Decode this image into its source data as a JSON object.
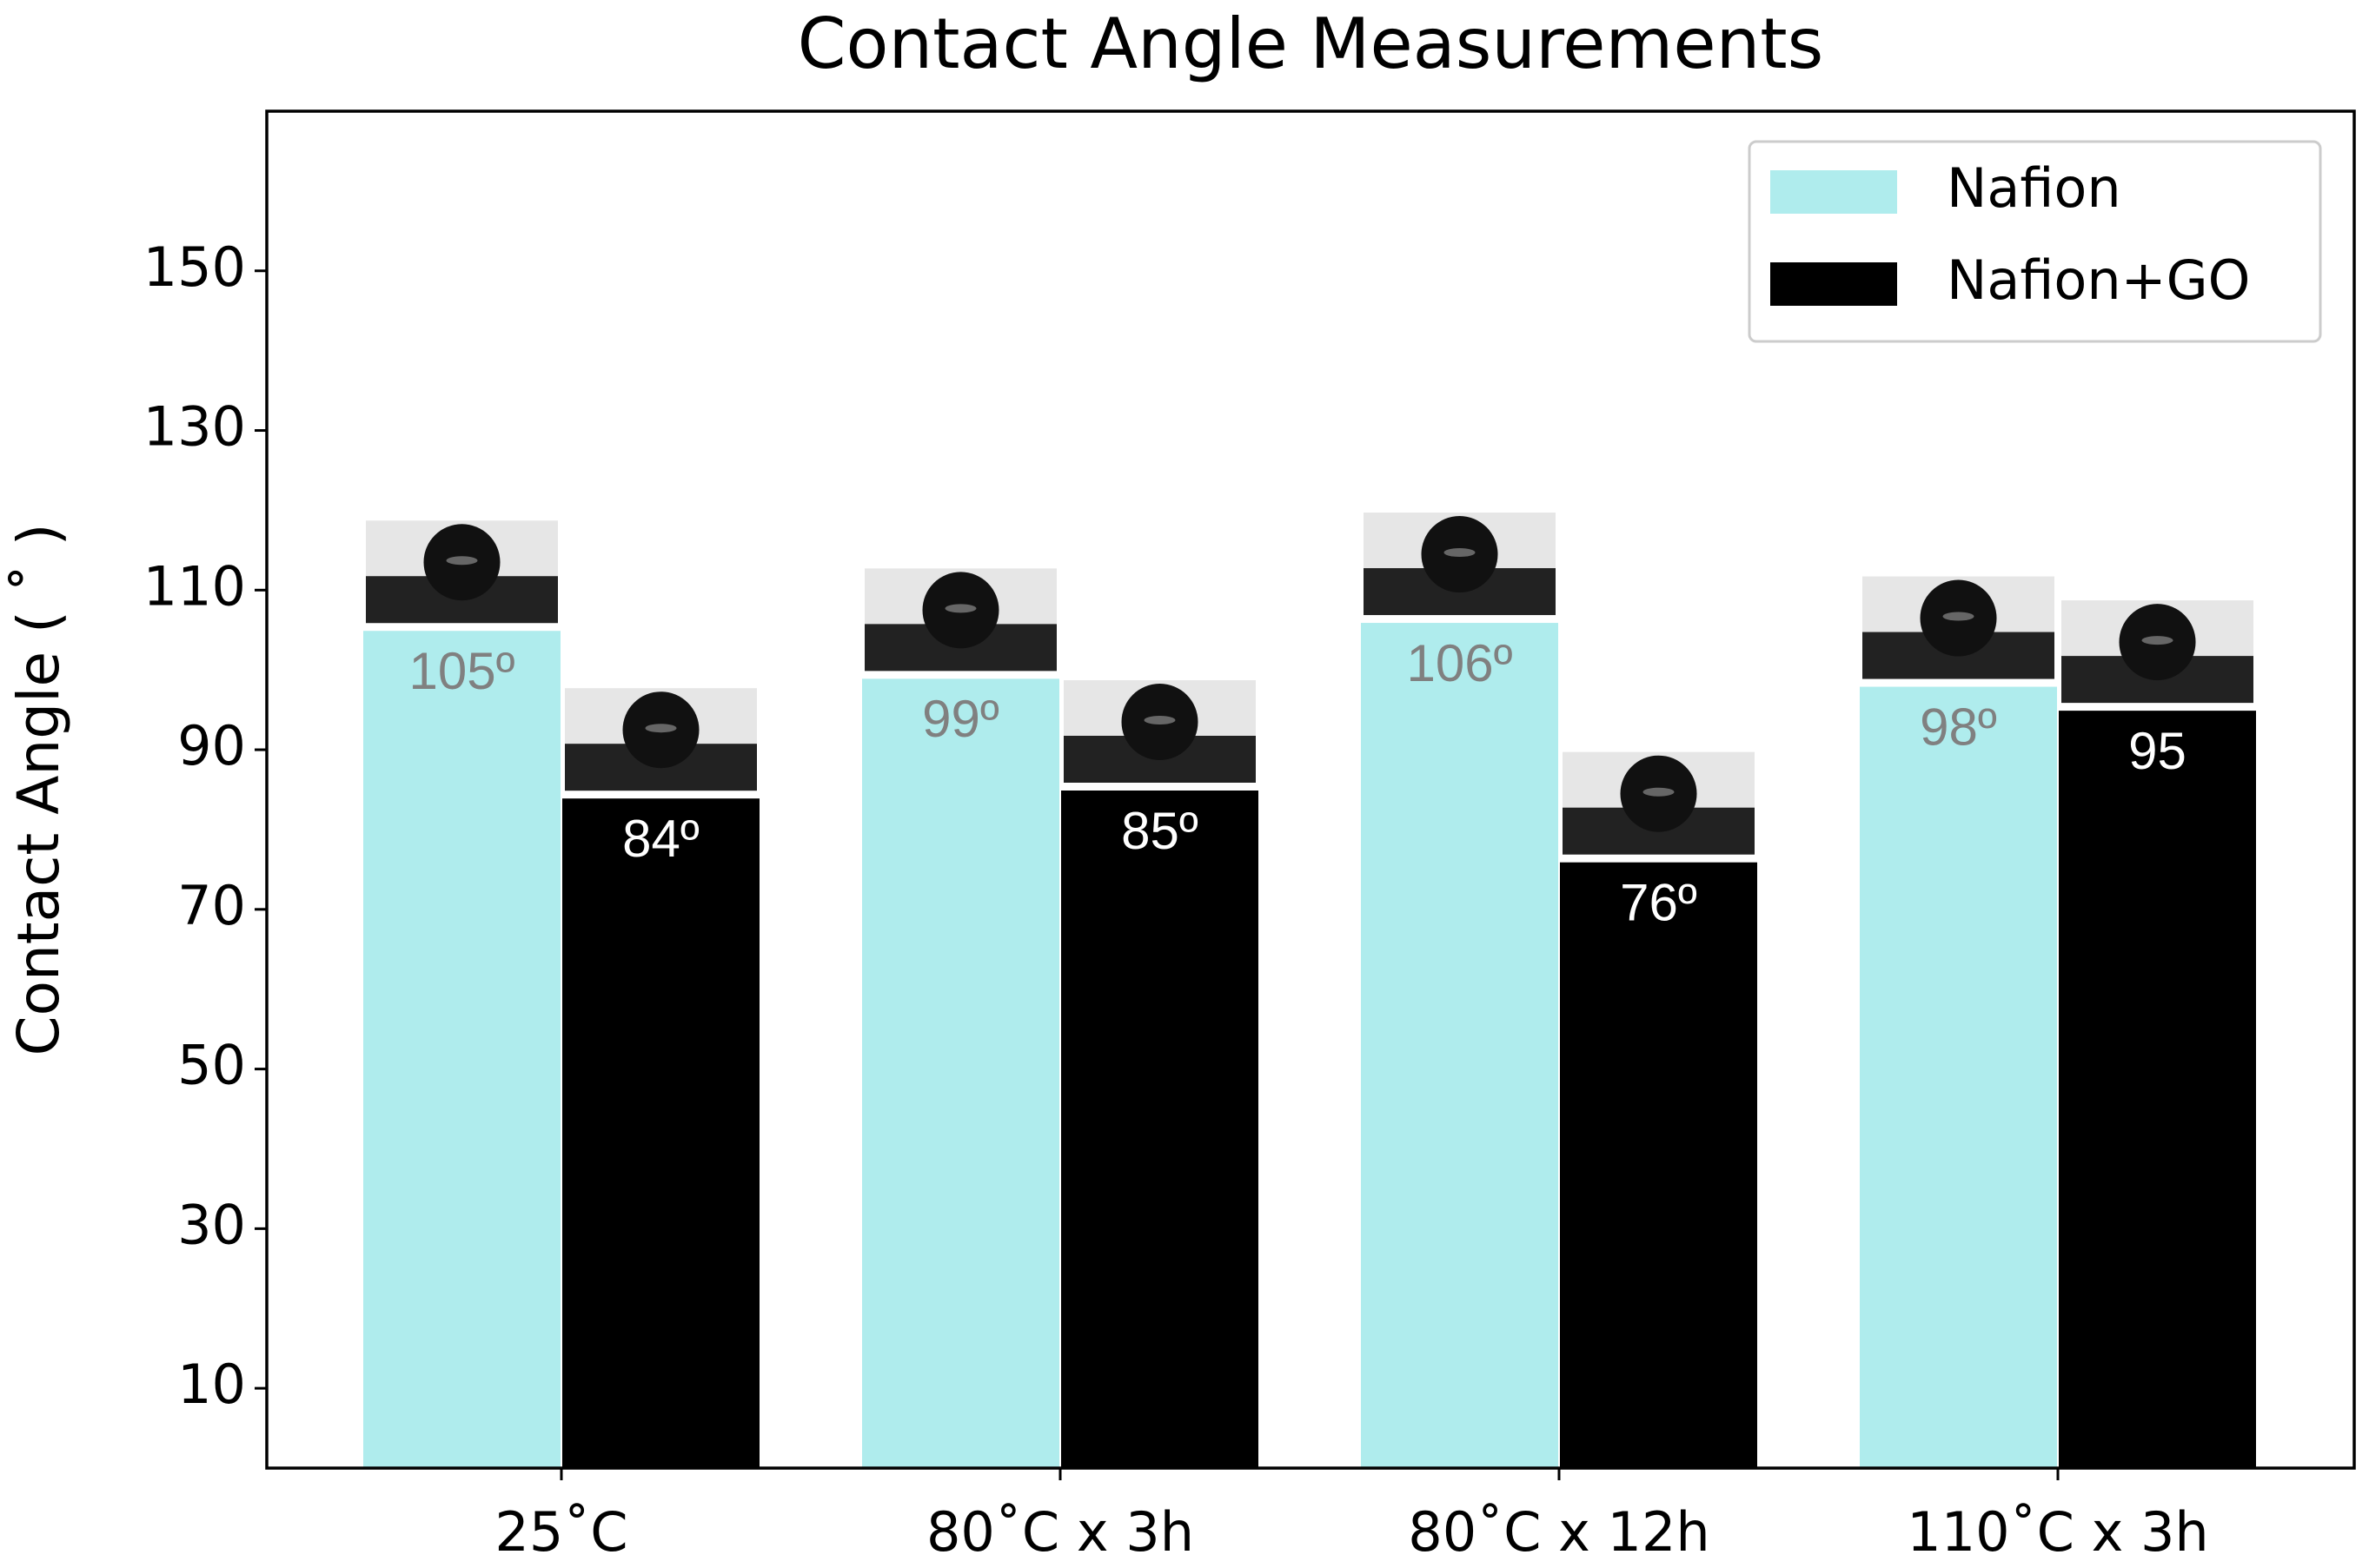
{
  "chart_data": {
    "type": "bar",
    "title": "Contact Angle Measurements",
    "y_label": "Contact Angle ( ˚ )",
    "categories": [
      "25˚C",
      "80˚C x 3h",
      "80˚C x 12h",
      "110˚C x 3h"
    ],
    "series": [
      {
        "name": "Nafion",
        "color": "#afeced",
        "label_color": "#808080",
        "values": [
          105,
          99,
          106,
          98
        ],
        "value_labels": [
          "105º",
          "99º",
          "106º",
          "98º"
        ]
      },
      {
        "name": "Nafion+GO",
        "color": "#000000",
        "label_color": "#ffffff",
        "values": [
          84,
          85,
          76,
          95
        ],
        "value_labels": [
          "84º",
          "85º",
          "76º",
          "95"
        ]
      }
    ],
    "ylim": [
      0,
      170
    ],
    "yticks": [
      10,
      30,
      50,
      70,
      90,
      110,
      130,
      150
    ],
    "legend": "upper right",
    "grid": false
  }
}
